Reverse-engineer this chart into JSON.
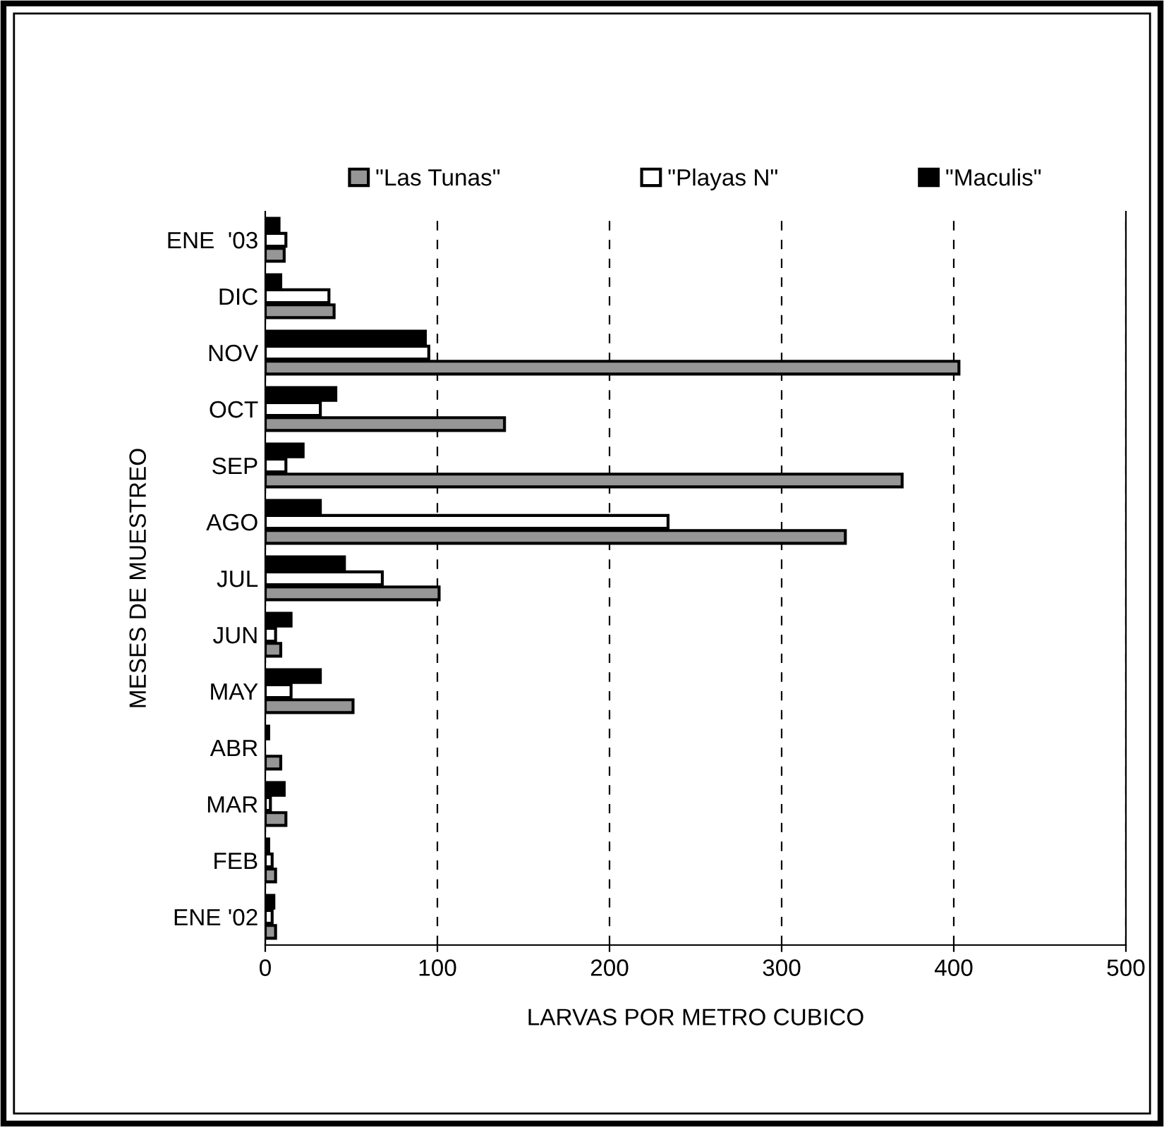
{
  "chart_data": {
    "type": "bar",
    "orientation": "horizontal",
    "xlabel": "LARVAS POR METRO CUBICO",
    "ylabel": "MESES DE MUESTREO",
    "categories": [
      "ENE  '03",
      "DIC",
      "NOV",
      "OCT",
      "SEP",
      "AGO",
      "JUL",
      "JUN",
      "MAY",
      "ABR",
      "MAR",
      "FEB",
      "ENE '02"
    ],
    "series": [
      {
        "name": "\"Las Tunas\"",
        "color": "#969696",
        "values": [
          11,
          40,
          403,
          139,
          370,
          337,
          101,
          9,
          51,
          9,
          12,
          6,
          6
        ]
      },
      {
        "name": "\"Playas N\"",
        "color": "#ffffff",
        "values": [
          12,
          37,
          95,
          32,
          12,
          234,
          68,
          6,
          15,
          null,
          3,
          4,
          4
        ]
      },
      {
        "name": "\"Maculis\"",
        "color": "#000000",
        "values": [
          8,
          9,
          93,
          41,
          22,
          32,
          46,
          15,
          32,
          2,
          11,
          2,
          5
        ]
      }
    ],
    "xlim": [
      0,
      500
    ],
    "xticks": [
      0,
      100,
      200,
      300,
      400,
      500
    ],
    "grid": "x",
    "legend": "top"
  }
}
